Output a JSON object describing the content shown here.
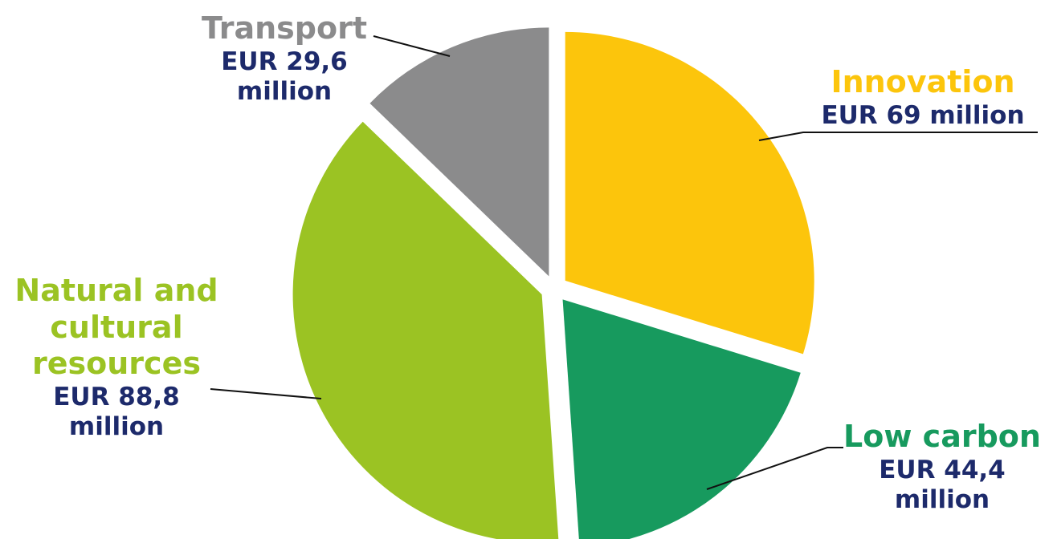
{
  "chart_data": {
    "type": "pie",
    "title": "",
    "unit": "EUR million",
    "slices": [
      {
        "label": "Innovation",
        "value_text": "EUR 69 million",
        "value": 69,
        "color": "#fcc50c"
      },
      {
        "label": "Low carbon",
        "value_text": "EUR 44,4 million",
        "value": 44.4,
        "color": "#179a5e"
      },
      {
        "label": "Natural and cultural resources",
        "value_text": "EUR 88,8 million",
        "value": 88.8,
        "color": "#9bc323"
      },
      {
        "label": "Transport",
        "value_text": "EUR 29,6 million",
        "value": 29.6,
        "color": "#8b8b8c"
      }
    ]
  }
}
